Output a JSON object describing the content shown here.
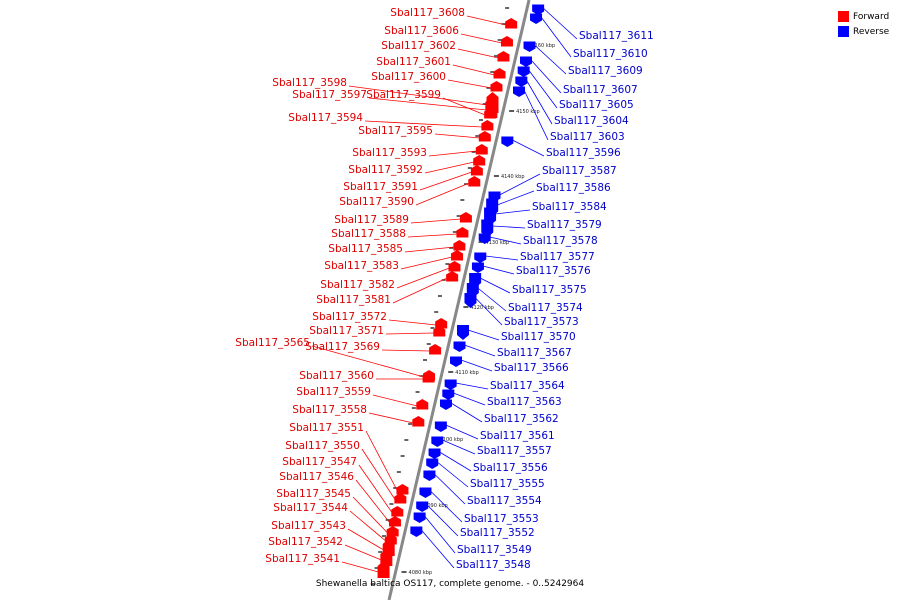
{
  "legend": {
    "forward_label": "Forward",
    "reverse_label": "Reverse",
    "forward_color": "#ff0000",
    "reverse_color": "#0000ff"
  },
  "caption": "Shewanella baltica OS117, complete genome. - 0..5242964",
  "colors": {
    "forward_label": "#dd0000",
    "reverse_label": "#0000cc",
    "backbone": "#888888"
  },
  "scale_ticks": [
    "4160 kbp",
    "4150 kbp",
    "4140 kbp",
    "4130 kbp",
    "4120 kbp",
    "4110 kbp",
    "4100 kbp",
    "4090 kbp",
    "4080 kbp"
  ],
  "forward_genes": [
    "Sbal117_3608",
    "Sbal117_3606",
    "Sbal117_3602",
    "Sbal117_3601",
    "Sbal117_3600",
    "Sbal117_3598",
    "Sbal117_3597",
    "Sbal117_3599",
    "Sbal117_3594",
    "Sbal117_3595",
    "Sbal117_3593",
    "Sbal117_3592",
    "Sbal117_3591",
    "Sbal117_3590",
    "Sbal117_3589",
    "Sbal117_3588",
    "Sbal117_3585",
    "Sbal117_3583",
    "Sbal117_3582",
    "Sbal117_3581",
    "Sbal117_3572",
    "Sbal117_3571",
    "Sbal117_3565",
    "Sbal117_3569",
    "Sbal117_3560",
    "Sbal117_3559",
    "Sbal117_3558",
    "Sbal117_3551",
    "Sbal117_3550",
    "Sbal117_3547",
    "Sbal117_3546",
    "Sbal117_3545",
    "Sbal117_3544",
    "Sbal117_3543",
    "Sbal117_3542",
    "Sbal117_3541"
  ],
  "reverse_genes": [
    "Sbal117_3611",
    "Sbal117_3610",
    "Sbal117_3609",
    "Sbal117_3607",
    "Sbal117_3605",
    "Sbal117_3604",
    "Sbal117_3603",
    "Sbal117_3596",
    "Sbal117_3587",
    "Sbal117_3586",
    "Sbal117_3584",
    "Sbal117_3579",
    "Sbal117_3578",
    "Sbal117_3577",
    "Sbal117_3576",
    "Sbal117_3575",
    "Sbal117_3574",
    "Sbal117_3573",
    "Sbal117_3570",
    "Sbal117_3567",
    "Sbal117_3566",
    "Sbal117_3564",
    "Sbal117_3563",
    "Sbal117_3562",
    "Sbal117_3561",
    "Sbal117_3557",
    "Sbal117_3556",
    "Sbal117_3555",
    "Sbal117_3554",
    "Sbal117_3553",
    "Sbal117_3552",
    "Sbal117_3549",
    "Sbal117_3548"
  ]
}
